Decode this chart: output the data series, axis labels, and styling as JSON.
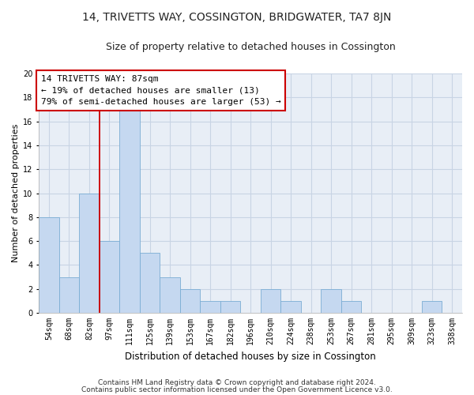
{
  "title": "14, TRIVETTS WAY, COSSINGTON, BRIDGWATER, TA7 8JN",
  "subtitle": "Size of property relative to detached houses in Cossington",
  "xlabel": "Distribution of detached houses by size in Cossington",
  "ylabel": "Number of detached properties",
  "categories": [
    "54sqm",
    "68sqm",
    "82sqm",
    "97sqm",
    "111sqm",
    "125sqm",
    "139sqm",
    "153sqm",
    "167sqm",
    "182sqm",
    "196sqm",
    "210sqm",
    "224sqm",
    "238sqm",
    "253sqm",
    "267sqm",
    "281sqm",
    "295sqm",
    "309sqm",
    "323sqm",
    "338sqm"
  ],
  "values": [
    8,
    3,
    10,
    6,
    17,
    5,
    3,
    2,
    1,
    1,
    0,
    2,
    1,
    0,
    2,
    1,
    0,
    0,
    0,
    1,
    0
  ],
  "bar_color": "#c5d8f0",
  "bar_edge_color": "#7aadd4",
  "highlight_line_index": 2,
  "highlight_color": "#cc0000",
  "annotation_line1": "14 TRIVETTS WAY: 87sqm",
  "annotation_line2": "← 19% of detached houses are smaller (13)",
  "annotation_line3": "79% of semi-detached houses are larger (53) →",
  "annotation_box_color": "#ffffff",
  "annotation_box_edge_color": "#cc0000",
  "footer_line1": "Contains HM Land Registry data © Crown copyright and database right 2024.",
  "footer_line2": "Contains public sector information licensed under the Open Government Licence v3.0.",
  "ylim": [
    0,
    20
  ],
  "yticks": [
    0,
    2,
    4,
    6,
    8,
    10,
    12,
    14,
    16,
    18,
    20
  ],
  "bg_color": "#e8eef6",
  "grid_color": "#c8d4e4",
  "title_fontsize": 10,
  "subtitle_fontsize": 9,
  "ylabel_fontsize": 8,
  "xlabel_fontsize": 8.5,
  "tick_fontsize": 7,
  "annotation_fontsize": 8,
  "footer_fontsize": 6.5
}
